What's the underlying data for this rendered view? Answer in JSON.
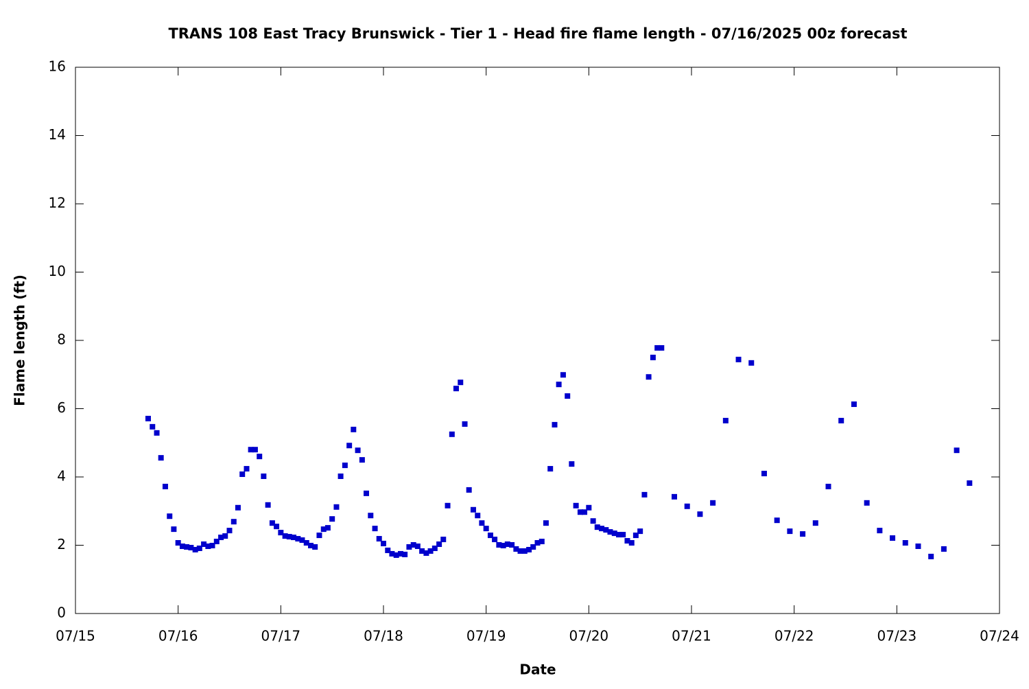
{
  "chart_data": {
    "type": "scatter",
    "title": "TRANS 108 East Tracy Brunswick - Tier 1 - Head fire flame length - 07/16/2025 00z forecast",
    "x_label": "Date",
    "y_label": "Flame length (ft)",
    "color": "#0000cc",
    "x": [
      15.708,
      15.75,
      15.792,
      15.833,
      15.875,
      15.917,
      15.958,
      16,
      16.042,
      16.083,
      16.125,
      16.167,
      16.208,
      16.25,
      16.292,
      16.333,
      16.375,
      16.417,
      16.458,
      16.5,
      16.542,
      16.583,
      16.625,
      16.667,
      16.708,
      16.75,
      16.792,
      16.833,
      16.875,
      16.917,
      16.958,
      17,
      17.042,
      17.083,
      17.125,
      17.167,
      17.208,
      17.25,
      17.292,
      17.333,
      17.375,
      17.417,
      17.458,
      17.5,
      17.542,
      17.583,
      17.625,
      17.667,
      17.708,
      17.75,
      17.792,
      17.833,
      17.875,
      17.917,
      17.958,
      18,
      18.042,
      18.083,
      18.125,
      18.167,
      18.208,
      18.25,
      18.292,
      18.333,
      18.375,
      18.417,
      18.458,
      18.5,
      18.542,
      18.583,
      18.625,
      18.667,
      18.708,
      18.75,
      18.792,
      18.833,
      18.875,
      18.917,
      18.958,
      19,
      19.042,
      19.083,
      19.125,
      19.167,
      19.208,
      19.25,
      19.292,
      19.333,
      19.375,
      19.417,
      19.458,
      19.5,
      19.542,
      19.583,
      19.625,
      19.667,
      19.708,
      19.75,
      19.792,
      19.833,
      19.875,
      19.917,
      19.958,
      20,
      20.042,
      20.083,
      20.125,
      20.167,
      20.208,
      20.25,
      20.292,
      20.333,
      20.375,
      20.417,
      20.458,
      20.5,
      20.542,
      20.583,
      20.625,
      20.667,
      20.708,
      20.833,
      20.958,
      21.083,
      21.208,
      21.333,
      21.458,
      21.583,
      21.708,
      21.833,
      21.958,
      22.083,
      22.208,
      22.333,
      22.458,
      22.583,
      22.708,
      22.833,
      22.958,
      23.083,
      23.208,
      23.333,
      23.458,
      23.583,
      23.708
    ],
    "values": [
      5.71,
      5.47,
      5.29,
      4.56,
      3.72,
      2.85,
      2.47,
      2.07,
      1.97,
      1.95,
      1.93,
      1.87,
      1.91,
      2.03,
      1.97,
      1.99,
      2.11,
      2.23,
      2.27,
      2.43,
      2.69,
      3.1,
      4.08,
      4.24,
      4.8,
      4.8,
      4.6,
      4.02,
      3.18,
      2.65,
      2.55,
      2.37,
      2.27,
      2.25,
      2.23,
      2.19,
      2.15,
      2.07,
      1.99,
      1.95,
      2.29,
      2.47,
      2.51,
      2.77,
      3.12,
      4.02,
      4.34,
      4.92,
      5.39,
      4.78,
      4.5,
      3.52,
      2.87,
      2.49,
      2.19,
      2.05,
      1.85,
      1.75,
      1.71,
      1.75,
      1.73,
      1.95,
      2.01,
      1.97,
      1.83,
      1.77,
      1.83,
      1.91,
      2.03,
      2.17,
      3.16,
      5.25,
      6.59,
      6.77,
      5.55,
      3.62,
      3.04,
      2.87,
      2.65,
      2.49,
      2.29,
      2.17,
      2.01,
      1.99,
      2.03,
      2.01,
      1.89,
      1.83,
      1.83,
      1.87,
      1.95,
      2.07,
      2.11,
      2.65,
      4.24,
      5.53,
      6.71,
      6.99,
      6.37,
      4.38,
      3.16,
      2.97,
      2.97,
      3.1,
      2.71,
      2.53,
      2.49,
      2.45,
      2.39,
      2.35,
      2.31,
      2.31,
      2.13,
      2.07,
      2.29,
      2.41,
      3.48,
      6.93,
      7.5,
      7.78,
      7.78,
      3.42,
      3.14,
      2.91,
      3.24,
      5.65,
      7.44,
      7.34,
      4.1,
      2.73,
      2.41,
      2.33,
      2.65,
      3.72,
      5.65,
      6.13,
      3.24,
      2.43,
      2.21,
      2.07,
      1.97,
      1.67,
      1.89,
      4.78,
      3.82
    ],
    "xlim": [
      15,
      24
    ],
    "xticks": [
      {
        "value": 15,
        "label": "07/15"
      },
      {
        "value": 16,
        "label": "07/16"
      },
      {
        "value": 17,
        "label": "07/17"
      },
      {
        "value": 18,
        "label": "07/18"
      },
      {
        "value": 19,
        "label": "07/19"
      },
      {
        "value": 20,
        "label": "07/20"
      },
      {
        "value": 21,
        "label": "07/21"
      },
      {
        "value": 22,
        "label": "07/22"
      },
      {
        "value": 23,
        "label": "07/23"
      },
      {
        "value": 24,
        "label": "07/24"
      }
    ],
    "ylim": [
      0,
      16
    ],
    "yticks": [
      0,
      2,
      4,
      6,
      8,
      10,
      12,
      14,
      16
    ],
    "grid": false
  }
}
